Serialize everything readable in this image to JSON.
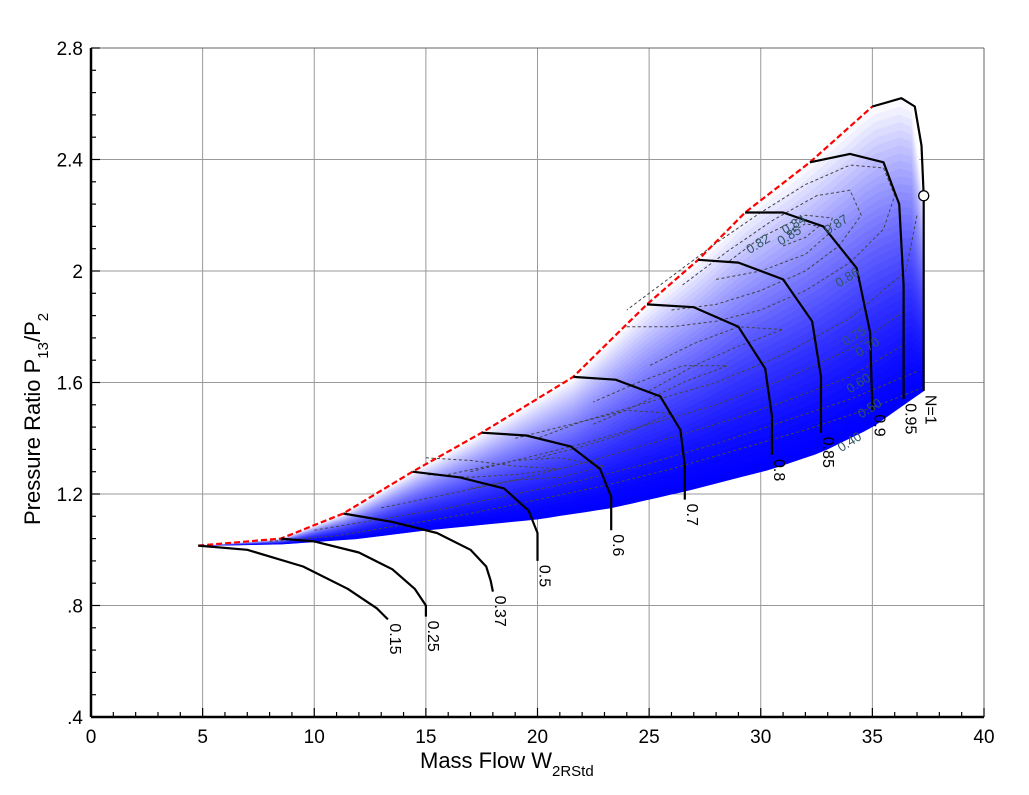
{
  "colors": {
    "surge_line": "#ff0000",
    "speed_line": "#000000",
    "efficiency_contour": "#444444",
    "grid": "#999999",
    "fill_light": "#ffffff",
    "fill_dark": "#0000ff",
    "efficiency_label": "#2f5560"
  },
  "chart_data": {
    "type": "line",
    "title": "",
    "xlabel": "Mass Flow W",
    "xlabel_sub": "2RStd",
    "ylabel_parts": {
      "a": "Pressure Ratio  P",
      "a_sub": "13",
      "b": "/P",
      "b_sub": "2"
    },
    "xlim": [
      0,
      40
    ],
    "ylim": [
      0.4,
      2.8
    ],
    "xticks": [
      0,
      5,
      10,
      15,
      20,
      25,
      30,
      35,
      40
    ],
    "xtick_labels": [
      "0",
      "5",
      "10",
      "15",
      "20",
      "25",
      "30",
      "35",
      "40"
    ],
    "yticks": [
      0.4,
      0.8,
      1.2,
      1.6,
      2.0,
      2.4,
      2.8
    ],
    "ytick_labels": [
      ".4",
      ".8",
      "1.2",
      "1.6",
      "2",
      "2.4",
      "2.8"
    ],
    "grid": true,
    "speed_lines": [
      {
        "label": "0.15",
        "points": [
          [
            4.8,
            1.015
          ],
          [
            7.0,
            1.0
          ],
          [
            9.5,
            0.94
          ],
          [
            11.5,
            0.86
          ],
          [
            12.8,
            0.79
          ],
          [
            13.3,
            0.75
          ]
        ]
      },
      {
        "label": "0.25",
        "points": [
          [
            8.5,
            1.04
          ],
          [
            10.0,
            1.03
          ],
          [
            12.0,
            0.99
          ],
          [
            13.5,
            0.93
          ],
          [
            14.5,
            0.86
          ],
          [
            15.0,
            0.8
          ],
          [
            15.0,
            0.76
          ]
        ]
      },
      {
        "label": "0.37",
        "points": [
          [
            11.3,
            1.13
          ],
          [
            13.5,
            1.1
          ],
          [
            15.5,
            1.06
          ],
          [
            17.0,
            1.0
          ],
          [
            17.7,
            0.94
          ],
          [
            17.9,
            0.89
          ],
          [
            18.0,
            0.85
          ]
        ]
      },
      {
        "label": "0.5",
        "points": [
          [
            14.4,
            1.28
          ],
          [
            16.5,
            1.26
          ],
          [
            18.5,
            1.22
          ],
          [
            19.6,
            1.14
          ],
          [
            20.0,
            1.06
          ],
          [
            20.0,
            0.96
          ]
        ]
      },
      {
        "label": "0.6",
        "points": [
          [
            17.5,
            1.42
          ],
          [
            19.5,
            1.41
          ],
          [
            21.5,
            1.37
          ],
          [
            22.8,
            1.29
          ],
          [
            23.3,
            1.19
          ],
          [
            23.3,
            1.07
          ]
        ]
      },
      {
        "label": "0.7",
        "points": [
          [
            21.6,
            1.62
          ],
          [
            23.5,
            1.61
          ],
          [
            25.5,
            1.55
          ],
          [
            26.4,
            1.43
          ],
          [
            26.6,
            1.3
          ],
          [
            26.6,
            1.18
          ]
        ]
      },
      {
        "label": "0.8",
        "points": [
          [
            24.9,
            1.88
          ],
          [
            27.0,
            1.87
          ],
          [
            29.0,
            1.8
          ],
          [
            30.2,
            1.65
          ],
          [
            30.5,
            1.48
          ],
          [
            30.5,
            1.34
          ]
        ]
      },
      {
        "label": "0.85",
        "points": [
          [
            27.2,
            2.04
          ],
          [
            29.0,
            2.03
          ],
          [
            31.0,
            1.97
          ],
          [
            32.3,
            1.82
          ],
          [
            32.7,
            1.62
          ],
          [
            32.7,
            1.42
          ]
        ]
      },
      {
        "label": "0.9",
        "points": [
          [
            29.3,
            2.21
          ],
          [
            31.0,
            2.21
          ],
          [
            32.8,
            2.16
          ],
          [
            34.3,
            2.01
          ],
          [
            34.9,
            1.78
          ],
          [
            35.0,
            1.5
          ]
        ]
      },
      {
        "label": "0.95",
        "points": [
          [
            32.2,
            2.39
          ],
          [
            34.0,
            2.42
          ],
          [
            35.5,
            2.39
          ],
          [
            36.2,
            2.24
          ],
          [
            36.4,
            1.95
          ],
          [
            36.4,
            1.54
          ]
        ]
      },
      {
        "label": "N=1",
        "points": [
          [
            35.0,
            2.59
          ],
          [
            36.3,
            2.62
          ],
          [
            36.9,
            2.59
          ],
          [
            37.2,
            2.45
          ],
          [
            37.3,
            2.27
          ],
          [
            37.3,
            1.57
          ]
        ]
      }
    ],
    "surge_line": [
      [
        4.8,
        1.015
      ],
      [
        8.5,
        1.04
      ],
      [
        11.3,
        1.13
      ],
      [
        14.4,
        1.28
      ],
      [
        17.5,
        1.42
      ],
      [
        21.6,
        1.62
      ],
      [
        24.9,
        1.88
      ],
      [
        27.2,
        2.04
      ],
      [
        29.3,
        2.21
      ],
      [
        32.2,
        2.39
      ],
      [
        35.0,
        2.59
      ]
    ],
    "choke_line": [
      [
        4.8,
        1.015
      ],
      [
        8.5,
        1.02
      ],
      [
        12.0,
        1.04
      ],
      [
        15.0,
        1.07
      ],
      [
        20.0,
        1.11
      ],
      [
        23.3,
        1.15
      ],
      [
        26.6,
        1.21
      ],
      [
        30.5,
        1.29
      ],
      [
        32.7,
        1.35
      ],
      [
        35.0,
        1.44
      ],
      [
        36.4,
        1.52
      ],
      [
        37.3,
        1.57
      ]
    ],
    "operating_point": {
      "x": 37.3,
      "y": 2.27
    },
    "efficiency_labels": [
      {
        "text": "0.82",
        "x": 29.5,
        "y": 2.06
      },
      {
        "text": "0.84",
        "x": 31.1,
        "y": 2.13
      },
      {
        "text": "0.85",
        "x": 30.9,
        "y": 2.09
      },
      {
        "text": "0.87",
        "x": 33.0,
        "y": 2.13
      },
      {
        "text": "0.86",
        "x": 33.5,
        "y": 1.94
      },
      {
        "text": "0.75",
        "x": 33.8,
        "y": 1.73
      },
      {
        "text": "0.70",
        "x": 34.4,
        "y": 1.69
      },
      {
        "text": "0.60",
        "x": 34.0,
        "y": 1.56
      },
      {
        "text": "0.50",
        "x": 34.5,
        "y": 1.47
      },
      {
        "text": "0.40",
        "x": 33.6,
        "y": 1.35
      }
    ],
    "efficiency_contours": [
      [
        [
          24.0,
          1.8
        ],
        [
          26.0,
          1.8
        ],
        [
          28.0,
          1.82
        ],
        [
          30.0,
          1.86
        ],
        [
          32.0,
          1.93
        ],
        [
          34.0,
          2.03
        ],
        [
          35.5,
          2.15
        ],
        [
          36.0,
          2.27
        ],
        [
          35.5,
          2.37
        ],
        [
          34.0,
          2.38
        ],
        [
          32.0,
          2.31
        ],
        [
          30.0,
          2.21
        ],
        [
          28.0,
          2.1
        ],
        [
          26.0,
          1.98
        ],
        [
          24.0,
          1.86
        ]
      ],
      [
        [
          26.0,
          1.86
        ],
        [
          28.0,
          1.88
        ],
        [
          30.0,
          1.93
        ],
        [
          32.0,
          2.0
        ],
        [
          33.5,
          2.09
        ],
        [
          34.5,
          2.2
        ],
        [
          34.0,
          2.29
        ],
        [
          32.5,
          2.27
        ],
        [
          30.5,
          2.18
        ],
        [
          28.5,
          2.07
        ],
        [
          26.5,
          1.95
        ]
      ],
      [
        [
          28.0,
          1.97
        ],
        [
          30.0,
          2.0
        ],
        [
          32.0,
          2.06
        ],
        [
          33.0,
          2.13
        ],
        [
          33.2,
          2.19
        ],
        [
          32.0,
          2.2
        ],
        [
          30.0,
          2.12
        ],
        [
          28.5,
          2.03
        ]
      ],
      [
        [
          31.0,
          2.09
        ],
        [
          32.0,
          2.12
        ],
        [
          32.6,
          2.16
        ],
        [
          32.0,
          2.17
        ],
        [
          31.2,
          2.13
        ]
      ],
      [
        [
          19.0,
          1.4
        ],
        [
          22.0,
          1.46
        ],
        [
          25.0,
          1.53
        ],
        [
          28.0,
          1.6
        ],
        [
          31.0,
          1.7
        ],
        [
          34.0,
          1.83
        ],
        [
          36.5,
          2.0
        ],
        [
          37.0,
          2.2
        ]
      ],
      [
        [
          16.0,
          1.27
        ],
        [
          19.0,
          1.32
        ],
        [
          22.0,
          1.38
        ],
        [
          25.0,
          1.45
        ],
        [
          28.0,
          1.52
        ],
        [
          31.0,
          1.61
        ],
        [
          34.0,
          1.72
        ],
        [
          36.5,
          1.86
        ]
      ],
      [
        [
          13.0,
          1.15
        ],
        [
          16.0,
          1.2
        ],
        [
          19.0,
          1.25
        ],
        [
          22.0,
          1.31
        ],
        [
          25.0,
          1.38
        ],
        [
          28.0,
          1.45
        ],
        [
          31.0,
          1.53
        ],
        [
          34.0,
          1.62
        ],
        [
          36.5,
          1.74
        ]
      ],
      [
        [
          10.0,
          1.07
        ],
        [
          13.0,
          1.11
        ],
        [
          16.0,
          1.15
        ],
        [
          19.0,
          1.2
        ],
        [
          22.0,
          1.25
        ],
        [
          25.0,
          1.31
        ],
        [
          28.0,
          1.38
        ],
        [
          31.0,
          1.46
        ],
        [
          34.0,
          1.54
        ],
        [
          37.0,
          1.64
        ]
      ],
      [
        [
          8.0,
          1.03
        ],
        [
          11.0,
          1.05
        ],
        [
          14.0,
          1.09
        ],
        [
          17.0,
          1.13
        ],
        [
          20.0,
          1.18
        ],
        [
          23.0,
          1.23
        ],
        [
          26.0,
          1.29
        ],
        [
          29.0,
          1.36
        ],
        [
          32.0,
          1.43
        ],
        [
          35.0,
          1.51
        ],
        [
          37.2,
          1.58
        ]
      ],
      [
        [
          15.0,
          1.33
        ],
        [
          17.0,
          1.32
        ],
        [
          19.0,
          1.3
        ],
        [
          21.0,
          1.29
        ],
        [
          19.0,
          1.27
        ],
        [
          17.0,
          1.26
        ],
        [
          15.0,
          1.27
        ]
      ],
      [
        [
          17.0,
          1.22
        ],
        [
          19.0,
          1.25
        ],
        [
          21.0,
          1.26
        ],
        [
          23.0,
          1.3
        ],
        [
          21.0,
          1.33
        ],
        [
          19.0,
          1.32
        ],
        [
          17.0,
          1.28
        ]
      ],
      [
        [
          20.0,
          1.33
        ],
        [
          22.0,
          1.37
        ],
        [
          24.0,
          1.42
        ],
        [
          26.0,
          1.49
        ],
        [
          24.0,
          1.5
        ],
        [
          22.0,
          1.46
        ],
        [
          20.0,
          1.4
        ]
      ],
      [
        [
          22.5,
          1.45
        ],
        [
          24.5,
          1.52
        ],
        [
          26.5,
          1.6
        ],
        [
          28.5,
          1.66
        ],
        [
          26.5,
          1.66
        ],
        [
          24.5,
          1.6
        ],
        [
          22.5,
          1.53
        ]
      ],
      [
        [
          25.0,
          1.57
        ],
        [
          27.0,
          1.66
        ],
        [
          29.0,
          1.73
        ],
        [
          31.0,
          1.79
        ],
        [
          29.0,
          1.8
        ],
        [
          27.0,
          1.74
        ],
        [
          25.0,
          1.66
        ]
      ]
    ]
  }
}
